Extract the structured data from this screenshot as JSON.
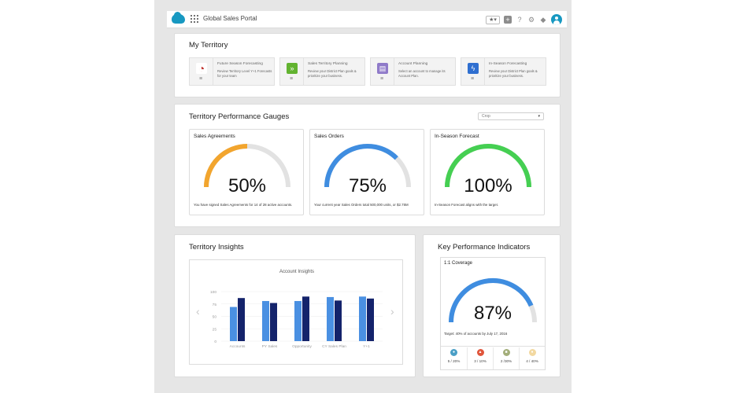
{
  "header": {
    "app_title": "Global Sales Portal",
    "icons": [
      "salesforce-cloud-logo",
      "app-launcher-icon",
      "favorites-star-icon",
      "global-actions-plus-icon",
      "help-icon",
      "setup-gear-icon",
      "notifications-bell-icon",
      "user-avatar"
    ]
  },
  "my_territory": {
    "title": "My Territory",
    "tiles": [
      {
        "icon": "pie-chart-icon",
        "icon_color": "#c23934",
        "glyph": "◔",
        "title": "Future Season Forecasting",
        "desc": "Review Territory Level Y+1 Forecasts for your team"
      },
      {
        "icon": "double-chevron-icon",
        "icon_color": "#62b330",
        "glyph": "»",
        "title": "Sales Territory Planning",
        "desc": "Review your District Plan goals & prioritize your business."
      },
      {
        "icon": "account-calendar-icon",
        "icon_color": "#8f7ac9",
        "glyph": "▤",
        "title": "Account Planning",
        "desc": "Select an account to manage its Account Plan."
      },
      {
        "icon": "lightning-icon",
        "icon_color": "#2f6fd0",
        "glyph": "ϟ",
        "title": "In-Season Forecasting",
        "desc": "Review your District Plan goals & prioritize your business."
      }
    ],
    "menu_glyph": "≡"
  },
  "gauges_card": {
    "title": "Territory Performance Gauges",
    "filter": {
      "selected": "Crop",
      "caret": "▾"
    },
    "gauges": [
      {
        "title": "Sales Agreements",
        "value": 50,
        "value_label": "50%",
        "color": "#f2a52e",
        "desc": "You have signed Sales Agreements for 14 of 28 active accounts."
      },
      {
        "title": "Sales Orders",
        "value": 75,
        "value_label": "75%",
        "color": "#3f8de0",
        "desc": "Your current year Sales Orders total 500,000 units, or $2.75M"
      },
      {
        "title": "In-Season Forecast",
        "value": 100,
        "value_label": "100%",
        "color": "#45cf52",
        "desc": "In-Season Forecast aligns with the target."
      }
    ]
  },
  "insights": {
    "title": "Territory Insights",
    "nav": {
      "prev": "‹",
      "next": "›"
    }
  },
  "chart_data": {
    "type": "bar",
    "title": "Account Insights",
    "categories": [
      "Accounts",
      "PY Sales",
      "Opportunity",
      "CY Sales Plan",
      "Y+1"
    ],
    "series": [
      {
        "values": [
          69,
          81,
          81,
          89,
          90
        ],
        "color": "#4a90e2"
      },
      {
        "values": [
          87,
          77,
          90,
          82,
          86
        ],
        "color": "#14236b"
      }
    ],
    "yticks": [
      "100",
      "75",
      "50",
      "25",
      "0"
    ],
    "ylim": [
      0,
      100
    ],
    "grid": true
  },
  "kpi": {
    "title": "Key Performance Indicators",
    "gauge": {
      "title": "1:1 Coverage",
      "value": 87,
      "value_label": "87%",
      "color": "#3f8de0",
      "desc": "Target: 40% of accounts by July 17, 2016"
    },
    "stats": [
      {
        "glyph": "●",
        "color": "#4a9fc6",
        "label": "5 / 20%"
      },
      {
        "glyph": "▲",
        "color": "#e0553b",
        "label": "3 / 10%"
      },
      {
        "glyph": "■",
        "color": "#a3ae7a",
        "label": "2 /30%"
      },
      {
        "glyph": "●",
        "color": "#f2d8a0",
        "label": "4 / 40%"
      }
    ]
  }
}
